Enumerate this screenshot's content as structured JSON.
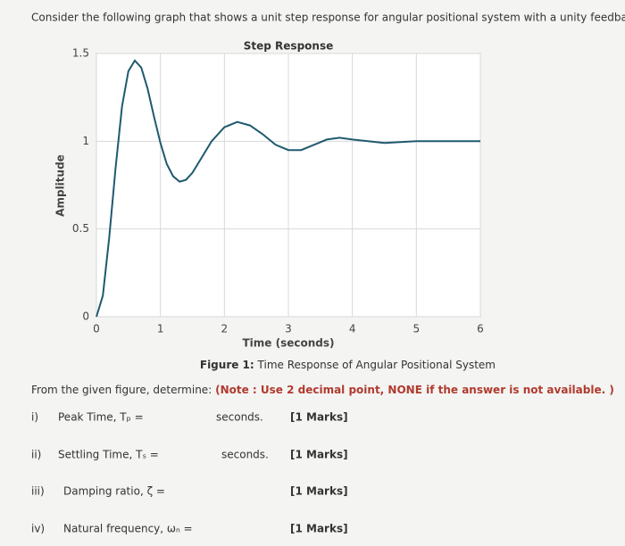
{
  "question": "Consider the following graph that shows a unit step response for angular positional system with a unity feedback.",
  "chart_data": {
    "type": "line",
    "title": "Step Response",
    "xlabel": "Time (seconds)",
    "ylabel": "Amplitude",
    "x": [
      0,
      0.1,
      0.2,
      0.3,
      0.4,
      0.5,
      0.6,
      0.7,
      0.8,
      0.9,
      1.0,
      1.1,
      1.2,
      1.3,
      1.4,
      1.5,
      1.6,
      1.8,
      2.0,
      2.2,
      2.4,
      2.6,
      2.8,
      3.0,
      3.2,
      3.4,
      3.6,
      3.8,
      4.0,
      4.5,
      5.0,
      5.5,
      6.0
    ],
    "y": [
      0,
      0.12,
      0.45,
      0.85,
      1.2,
      1.4,
      1.46,
      1.42,
      1.3,
      1.14,
      0.99,
      0.87,
      0.8,
      0.77,
      0.78,
      0.82,
      0.88,
      1.0,
      1.08,
      1.11,
      1.09,
      1.04,
      0.98,
      0.95,
      0.95,
      0.98,
      1.01,
      1.02,
      1.01,
      0.99,
      1.0,
      1.0,
      1.0
    ],
    "color": "#1f5a6e",
    "xlim": [
      0,
      6
    ],
    "ylim": [
      0,
      1.5
    ],
    "xticks": [
      0,
      1,
      2,
      3,
      4,
      5,
      6
    ],
    "yticks": [
      0,
      0.5,
      1,
      1.5
    ],
    "grid": true
  },
  "caption": {
    "label": "Figure 1:",
    "text": "Time Response of Angular Positional System"
  },
  "instruction": {
    "text": "From the given figure, determine:",
    "note": "(Note : Use 2 decimal point, NONE if the answer is not available. )"
  },
  "items": [
    {
      "number": "i)",
      "label": "Peak Time, Tₚ =",
      "unit": "seconds.",
      "marks": "[1 Marks]"
    },
    {
      "number": "ii)",
      "label": "Settling Time, Tₛ =",
      "unit": "seconds.",
      "marks": "[1 Marks]"
    },
    {
      "number": "iii)",
      "label": "Damping ratio, ζ =",
      "marks": "[1 Marks]"
    },
    {
      "number": "iv)",
      "label": "Natural frequency, ωₙ =",
      "marks": "[1 Marks]"
    }
  ]
}
